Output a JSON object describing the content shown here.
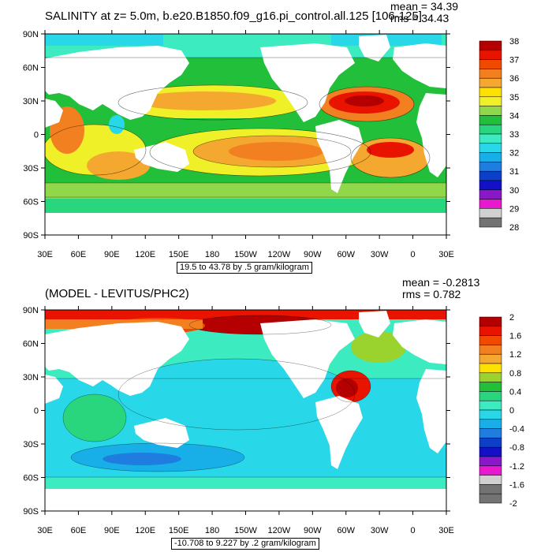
{
  "panels": [
    {
      "id": "salinity",
      "title": "SALINITY at z=   5.0m, b.e20.B1850.f09_g16.pi_control.all.125 [106-125]",
      "mean_text": "mean = 34.39",
      "rms_text": "rms = 34.43",
      "range_text": "19.5 to 43.78 by .5 gram/kilogram",
      "colorbar": {
        "labels": [
          "38",
          "37",
          "36",
          "35",
          "34",
          "33",
          "32",
          "31",
          "30",
          "29",
          "28"
        ],
        "colors": [
          "#b40000",
          "#e81400",
          "#f04a00",
          "#f28020",
          "#f5a830",
          "#fde100",
          "#f0f028",
          "#90d84a",
          "#22c03a",
          "#29d67e",
          "#3cebbf",
          "#28d8e8",
          "#18aee8",
          "#1f7de0",
          "#0c40c8",
          "#1410c8",
          "#8a18c8",
          "#e818d0",
          "#d0d0d0",
          "#737373"
        ]
      }
    },
    {
      "id": "difference",
      "title": "(MODEL - LEVITUS/PHC2)",
      "mean_text": "mean = -0.2813",
      "rms_text": "rms = 0.782",
      "range_text": "-10.708 to 9.227 by .2 gram/kilogram",
      "colorbar": {
        "labels": [
          "2",
          "1.6",
          "1.2",
          "0.8",
          "0.4",
          "0",
          "-0.4",
          "-0.8",
          "-1.2",
          "-1.6",
          "-2"
        ],
        "colors": [
          "#b40000",
          "#e81400",
          "#f04a00",
          "#f28020",
          "#f5a830",
          "#fde100",
          "#9ad22e",
          "#22c03a",
          "#29d67e",
          "#3cebbf",
          "#28d8e8",
          "#18aee8",
          "#1f7de0",
          "#0c40c8",
          "#1410c8",
          "#8a18c8",
          "#e818d0",
          "#d0d0d0",
          "#737373",
          "#737373"
        ]
      }
    }
  ],
  "axes": {
    "lat_labels": [
      "90N",
      "60N",
      "30N",
      "0",
      "30S",
      "60S",
      "90S"
    ],
    "lon_labels": [
      "30E",
      "60E",
      "90E",
      "120E",
      "150E",
      "180",
      "150W",
      "120W",
      "90W",
      "60W",
      "30W",
      "0",
      "30E"
    ]
  },
  "colors": {
    "land": "#ffffff",
    "frame": "#000000"
  }
}
